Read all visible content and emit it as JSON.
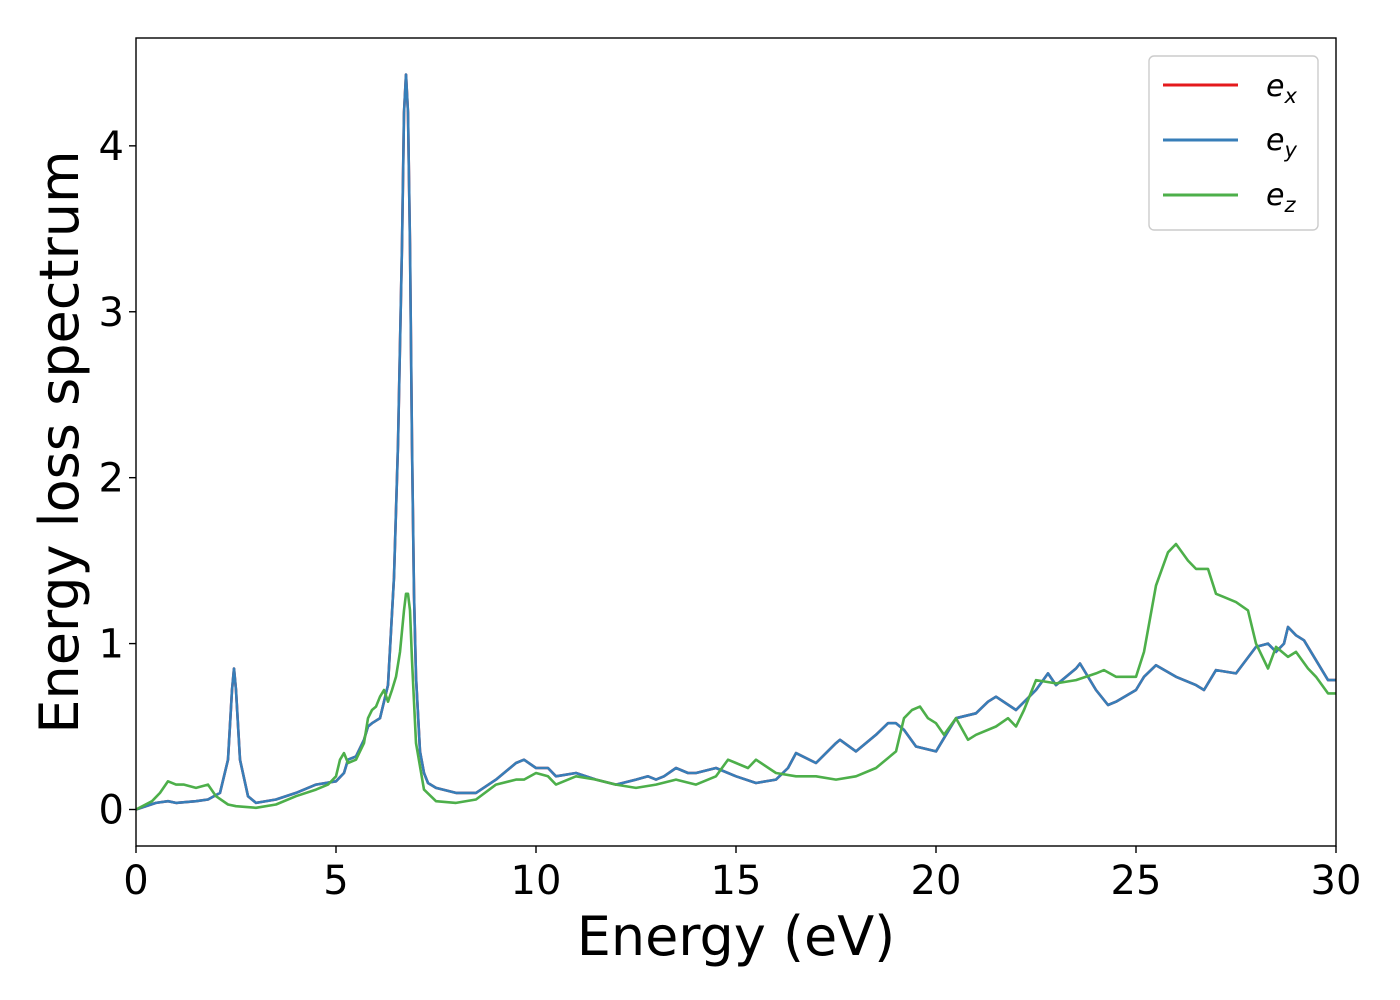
{
  "chart_data": {
    "type": "line",
    "title": "",
    "xlabel": "Energy (eV)",
    "ylabel": "Energy loss spectrum",
    "xlim": [
      0,
      30
    ],
    "ylim": [
      -0.22,
      4.65
    ],
    "xticks": [
      "0",
      "5",
      "10",
      "15",
      "20",
      "25",
      "30"
    ],
    "yticks": [
      "0",
      "1",
      "2",
      "3",
      "4"
    ],
    "grid": false,
    "legend_position": "top-right",
    "series": [
      {
        "name": "e",
        "subscript": "x",
        "color": "#e41a1c",
        "x": [
          0,
          0.5,
          0.8,
          1.0,
          1.5,
          1.8,
          2.1,
          2.3,
          2.4,
          2.45,
          2.5,
          2.6,
          2.8,
          3.0,
          3.5,
          4.0,
          4.5,
          5.0,
          5.2,
          5.3,
          5.5,
          5.7,
          5.8,
          5.9,
          6.1,
          6.3,
          6.45,
          6.55,
          6.65,
          6.7,
          6.75,
          6.8,
          6.85,
          6.9,
          6.95,
          7.0,
          7.1,
          7.2,
          7.3,
          7.5,
          8.0,
          8.5,
          9.0,
          9.5,
          9.7,
          10.0,
          10.3,
          10.5,
          11.0,
          11.5,
          12.0,
          12.5,
          12.8,
          13.0,
          13.2,
          13.5,
          13.8,
          14.0,
          14.5,
          15.0,
          15.5,
          16.0,
          16.3,
          16.5,
          17.0,
          17.5,
          17.6,
          18.0,
          18.5,
          18.8,
          19.0,
          19.2,
          19.5,
          20.0,
          20.5,
          21.0,
          21.3,
          21.5,
          22.0,
          22.5,
          22.8,
          23.0,
          23.5,
          23.6,
          24.0,
          24.3,
          24.5,
          25.0,
          25.2,
          25.5,
          26.0,
          26.5,
          26.7,
          27.0,
          27.5,
          28.0,
          28.3,
          28.5,
          28.7,
          28.8,
          29.0,
          29.2,
          29.5,
          29.8,
          30.0
        ],
        "y": [
          0.0,
          0.04,
          0.05,
          0.04,
          0.05,
          0.06,
          0.1,
          0.3,
          0.72,
          0.85,
          0.72,
          0.3,
          0.08,
          0.04,
          0.06,
          0.1,
          0.15,
          0.17,
          0.22,
          0.3,
          0.32,
          0.42,
          0.5,
          0.52,
          0.55,
          0.75,
          1.4,
          2.2,
          3.4,
          4.2,
          4.43,
          4.2,
          3.4,
          2.2,
          1.3,
          0.8,
          0.35,
          0.22,
          0.16,
          0.13,
          0.1,
          0.1,
          0.18,
          0.28,
          0.3,
          0.25,
          0.25,
          0.2,
          0.22,
          0.18,
          0.15,
          0.18,
          0.2,
          0.18,
          0.2,
          0.25,
          0.22,
          0.22,
          0.25,
          0.2,
          0.16,
          0.18,
          0.25,
          0.34,
          0.28,
          0.4,
          0.42,
          0.35,
          0.45,
          0.52,
          0.52,
          0.48,
          0.38,
          0.35,
          0.55,
          0.58,
          0.65,
          0.68,
          0.6,
          0.72,
          0.82,
          0.75,
          0.85,
          0.88,
          0.72,
          0.63,
          0.65,
          0.72,
          0.8,
          0.87,
          0.8,
          0.75,
          0.72,
          0.84,
          0.82,
          0.98,
          1.0,
          0.95,
          1.0,
          1.1,
          1.05,
          1.02,
          0.9,
          0.78,
          0.78
        ]
      },
      {
        "name": "e",
        "subscript": "y",
        "color": "#377eb8",
        "x": [
          0,
          0.5,
          0.8,
          1.0,
          1.5,
          1.8,
          2.1,
          2.3,
          2.4,
          2.45,
          2.5,
          2.6,
          2.8,
          3.0,
          3.5,
          4.0,
          4.5,
          5.0,
          5.2,
          5.3,
          5.5,
          5.7,
          5.8,
          5.9,
          6.1,
          6.3,
          6.45,
          6.55,
          6.65,
          6.7,
          6.75,
          6.8,
          6.85,
          6.9,
          6.95,
          7.0,
          7.1,
          7.2,
          7.3,
          7.5,
          8.0,
          8.5,
          9.0,
          9.5,
          9.7,
          10.0,
          10.3,
          10.5,
          11.0,
          11.5,
          12.0,
          12.5,
          12.8,
          13.0,
          13.2,
          13.5,
          13.8,
          14.0,
          14.5,
          15.0,
          15.5,
          16.0,
          16.3,
          16.5,
          17.0,
          17.5,
          17.6,
          18.0,
          18.5,
          18.8,
          19.0,
          19.2,
          19.5,
          20.0,
          20.5,
          21.0,
          21.3,
          21.5,
          22.0,
          22.5,
          22.8,
          23.0,
          23.5,
          23.6,
          24.0,
          24.3,
          24.5,
          25.0,
          25.2,
          25.5,
          26.0,
          26.5,
          26.7,
          27.0,
          27.5,
          28.0,
          28.3,
          28.5,
          28.7,
          28.8,
          29.0,
          29.2,
          29.5,
          29.8,
          30.0
        ],
        "y": [
          0.0,
          0.04,
          0.05,
          0.04,
          0.05,
          0.06,
          0.1,
          0.3,
          0.72,
          0.85,
          0.72,
          0.3,
          0.08,
          0.04,
          0.06,
          0.1,
          0.15,
          0.17,
          0.22,
          0.3,
          0.32,
          0.42,
          0.5,
          0.52,
          0.55,
          0.75,
          1.4,
          2.2,
          3.4,
          4.2,
          4.43,
          4.2,
          3.4,
          2.2,
          1.3,
          0.8,
          0.35,
          0.22,
          0.16,
          0.13,
          0.1,
          0.1,
          0.18,
          0.28,
          0.3,
          0.25,
          0.25,
          0.2,
          0.22,
          0.18,
          0.15,
          0.18,
          0.2,
          0.18,
          0.2,
          0.25,
          0.22,
          0.22,
          0.25,
          0.2,
          0.16,
          0.18,
          0.25,
          0.34,
          0.28,
          0.4,
          0.42,
          0.35,
          0.45,
          0.52,
          0.52,
          0.48,
          0.38,
          0.35,
          0.55,
          0.58,
          0.65,
          0.68,
          0.6,
          0.72,
          0.82,
          0.75,
          0.85,
          0.88,
          0.72,
          0.63,
          0.65,
          0.72,
          0.8,
          0.87,
          0.8,
          0.75,
          0.72,
          0.84,
          0.82,
          0.98,
          1.0,
          0.95,
          1.0,
          1.1,
          1.05,
          1.02,
          0.9,
          0.78,
          0.78
        ]
      },
      {
        "name": "e",
        "subscript": "z",
        "color": "#4daf4a",
        "x": [
          0,
          0.4,
          0.6,
          0.8,
          1.0,
          1.2,
          1.5,
          1.8,
          2.0,
          2.3,
          2.5,
          3.0,
          3.5,
          4.0,
          4.5,
          4.8,
          5.0,
          5.1,
          5.2,
          5.3,
          5.5,
          5.7,
          5.8,
          5.9,
          6.0,
          6.1,
          6.2,
          6.3,
          6.4,
          6.5,
          6.6,
          6.7,
          6.75,
          6.8,
          6.85,
          6.9,
          7.0,
          7.2,
          7.5,
          8.0,
          8.5,
          9.0,
          9.5,
          9.7,
          10.0,
          10.3,
          10.5,
          11.0,
          11.5,
          12.0,
          12.5,
          13.0,
          13.5,
          14.0,
          14.5,
          14.8,
          15.0,
          15.3,
          15.5,
          16.0,
          16.5,
          17.0,
          17.5,
          18.0,
          18.5,
          19.0,
          19.2,
          19.4,
          19.6,
          19.8,
          20.0,
          20.2,
          20.5,
          20.8,
          21.0,
          21.5,
          21.8,
          22.0,
          22.2,
          22.5,
          23.0,
          23.5,
          24.0,
          24.2,
          24.5,
          25.0,
          25.2,
          25.5,
          25.8,
          26.0,
          26.3,
          26.5,
          26.8,
          27.0,
          27.2,
          27.5,
          27.8,
          28.0,
          28.3,
          28.5,
          28.8,
          29.0,
          29.3,
          29.5,
          29.8,
          30.0
        ],
        "y": [
          0.0,
          0.05,
          0.1,
          0.17,
          0.15,
          0.15,
          0.13,
          0.15,
          0.08,
          0.03,
          0.02,
          0.01,
          0.03,
          0.08,
          0.12,
          0.15,
          0.2,
          0.3,
          0.34,
          0.28,
          0.3,
          0.4,
          0.55,
          0.6,
          0.62,
          0.68,
          0.72,
          0.65,
          0.72,
          0.8,
          0.95,
          1.2,
          1.3,
          1.3,
          1.2,
          0.9,
          0.4,
          0.12,
          0.05,
          0.04,
          0.06,
          0.15,
          0.18,
          0.18,
          0.22,
          0.2,
          0.15,
          0.2,
          0.18,
          0.15,
          0.13,
          0.15,
          0.18,
          0.15,
          0.2,
          0.3,
          0.28,
          0.25,
          0.3,
          0.22,
          0.2,
          0.2,
          0.18,
          0.2,
          0.25,
          0.35,
          0.55,
          0.6,
          0.62,
          0.55,
          0.52,
          0.45,
          0.55,
          0.42,
          0.45,
          0.5,
          0.55,
          0.5,
          0.6,
          0.78,
          0.76,
          0.78,
          0.82,
          0.84,
          0.8,
          0.8,
          0.95,
          1.35,
          1.55,
          1.6,
          1.5,
          1.45,
          1.45,
          1.3,
          1.28,
          1.25,
          1.2,
          1.0,
          0.85,
          0.98,
          0.92,
          0.95,
          0.85,
          0.8,
          0.7,
          0.7
        ]
      }
    ]
  }
}
